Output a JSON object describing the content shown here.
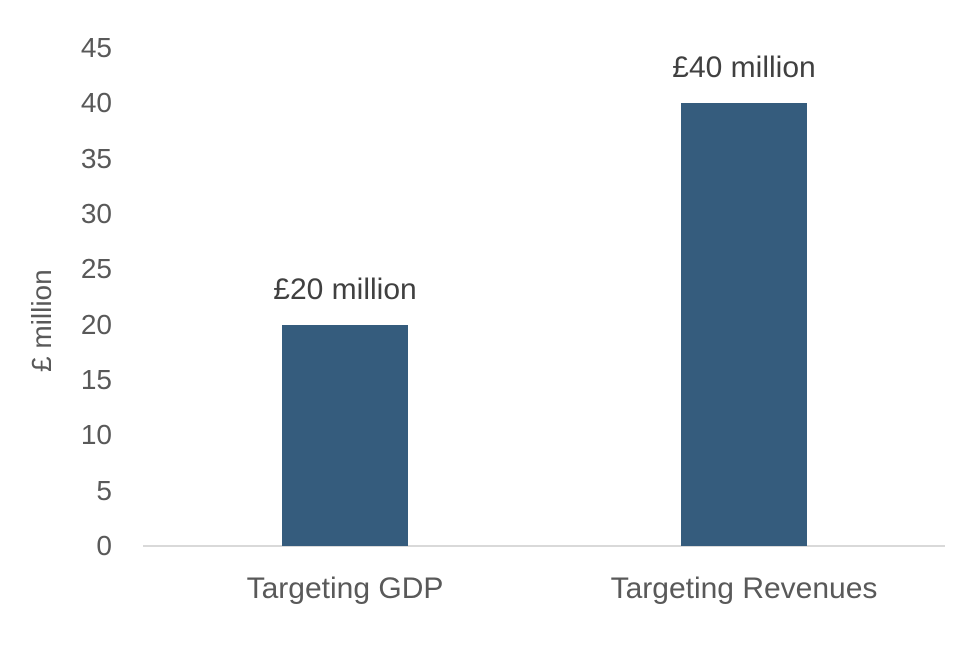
{
  "chart_data": {
    "type": "bar",
    "title": "",
    "xlabel": "",
    "ylabel": "£ million",
    "categories": [
      "Targeting GDP",
      "Targeting Revenues"
    ],
    "values": [
      20,
      40
    ],
    "data_labels": [
      "£20 million",
      "£40 million"
    ],
    "ylim": [
      0,
      45
    ],
    "yticks": [
      "0",
      "5",
      "10",
      "15",
      "20",
      "25",
      "30",
      "35",
      "40",
      "45"
    ],
    "grid": false,
    "legend": null,
    "bar_color": "#355c7d"
  }
}
